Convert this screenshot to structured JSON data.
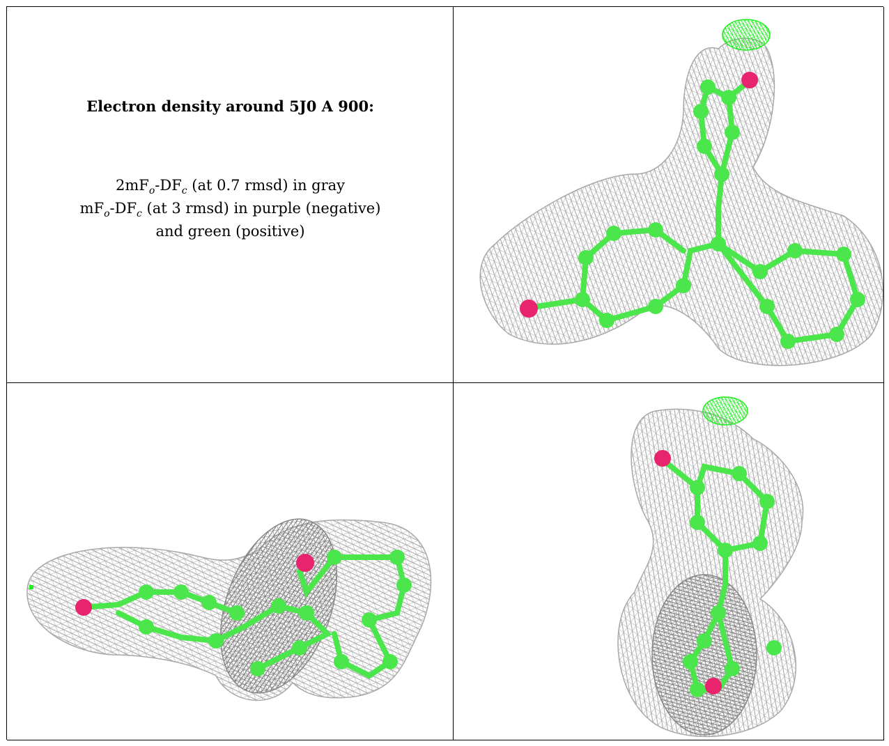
{
  "caption": {
    "title": "Electron density around 5J0 A 900:",
    "line1": {
      "a": "2mF",
      "a_sub": "o",
      "b": "-DF",
      "b_sub": "c",
      "c": " (at 0.7 rmsd) in gray"
    },
    "line2": {
      "a": "mF",
      "a_sub": "o",
      "b": "-DF",
      "b_sub": "c",
      "c": " (at 3 rmsd) in purple (negative)"
    },
    "line3": "and green (positive)"
  },
  "colors": {
    "mesh_2fofc": "#a8a8a8",
    "mesh_positive": "#22ee22",
    "carbon": "#4be64b",
    "oxygen": "#e8246e",
    "border": "#000000"
  },
  "views": [
    {
      "name": "view-top-right",
      "description": "density-mesh"
    },
    {
      "name": "view-bottom-left",
      "description": "density-mesh"
    },
    {
      "name": "view-bottom-right",
      "description": "density-mesh"
    }
  ]
}
